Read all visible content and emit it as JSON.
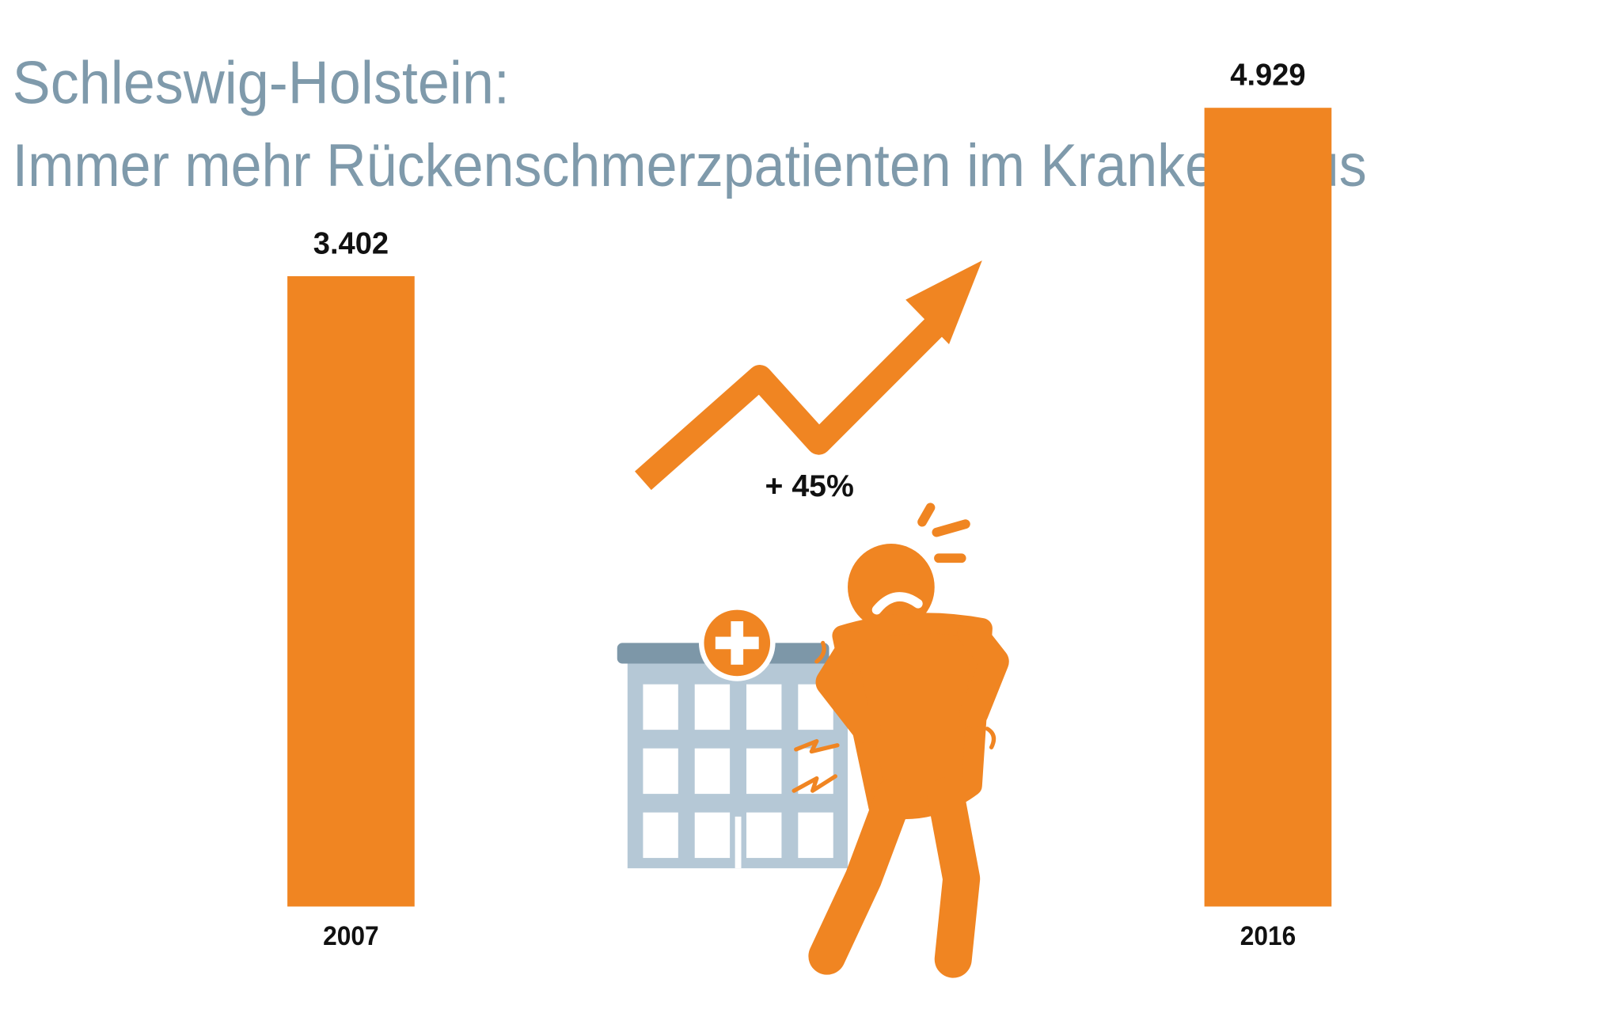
{
  "title_line1": "Schleswig-Holstein:",
  "title_line2": "Immer mehr Rückenschmerzpatienten im Krankenhaus",
  "change_label": "+ 45%",
  "colors": {
    "bar": "#f08522",
    "title": "#7f9aab",
    "building": "#b5c8d6",
    "roof": "#7d97a8"
  },
  "icons": [
    "trend-arrow-icon",
    "hospital-icon",
    "back-pain-person-icon"
  ],
  "chart_data": {
    "type": "bar",
    "title": "Schleswig-Holstein: Immer mehr Rückenschmerzpatienten im Krankenhaus",
    "categories": [
      "2007",
      "2016"
    ],
    "values": [
      3402,
      4929
    ],
    "value_labels": [
      "3.402",
      "4.929"
    ],
    "xlabel": "",
    "ylabel": "",
    "grid": false,
    "annotation": "+ 45%"
  }
}
